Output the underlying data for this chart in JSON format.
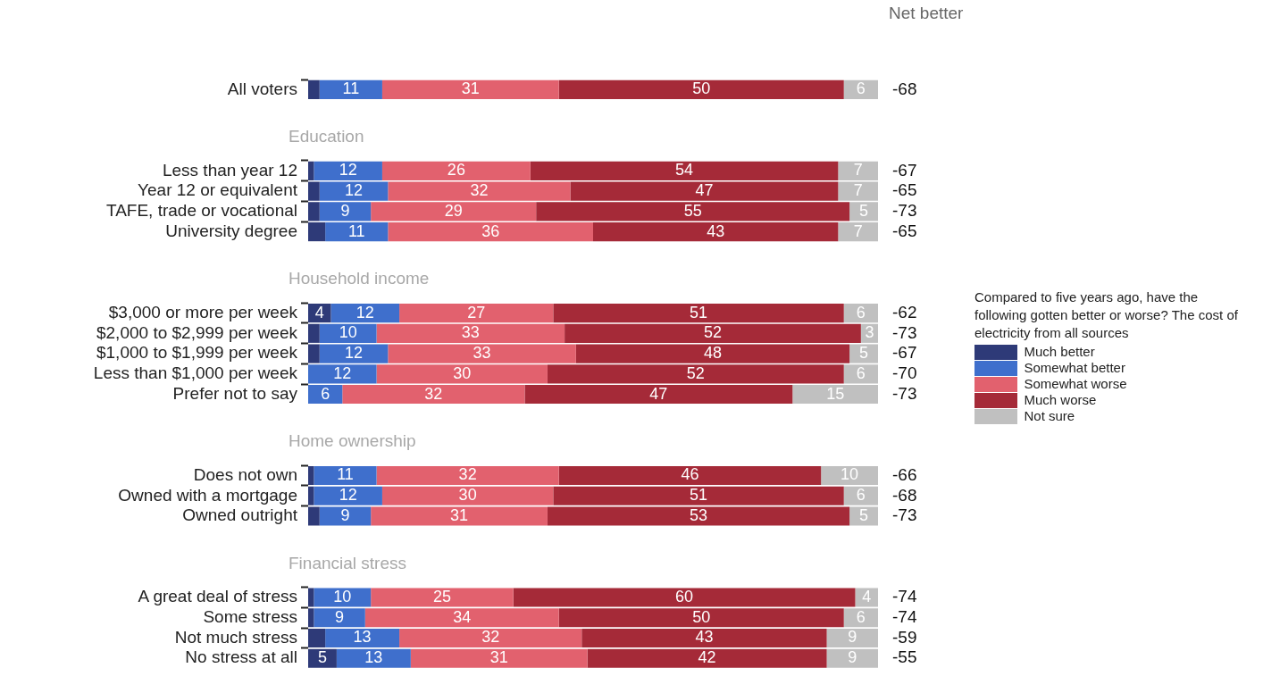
{
  "chart_data": {
    "type": "bar",
    "orientation": "horizontal",
    "stacked": true,
    "legend_title": "Compared to five years ago, have the following gotten better or worse? The cost of electricity from all sources",
    "legend": "right",
    "tick_labels": "y",
    "xlim": [
      0,
      100
    ],
    "categories": [
      "All voters",
      null,
      null,
      null,
      "Less than year 12",
      "Year 12 or equivalent",
      "TAFE, trade or vocational",
      "University degree",
      null,
      null,
      null,
      "$3,000 or more per week",
      "$2,000 to $2,999 per week",
      "$1,000 to $1,999 per week",
      "Less than $1,000 per week",
      "Prefer not to say",
      null,
      null,
      null,
      "Does not own",
      "Owned with a mortgage",
      "Owned outright",
      null,
      null,
      null,
      "A great deal of stress",
      "Some stress",
      "Not much stress",
      "No stress at all"
    ],
    "series": [
      {
        "name": "Much better",
        "color": "#2e3a78",
        "values": [
          2,
          null,
          null,
          null,
          1,
          2,
          2,
          3,
          null,
          null,
          null,
          4,
          2,
          2,
          0,
          0,
          null,
          null,
          null,
          1,
          1,
          2,
          null,
          null,
          null,
          1,
          1,
          3,
          5
        ],
        "value_labels": [
          null,
          null,
          null,
          null,
          null,
          null,
          null,
          null,
          null,
          null,
          null,
          "4",
          null,
          null,
          null,
          null,
          null,
          null,
          null,
          null,
          null,
          null,
          null,
          null,
          null,
          null,
          null,
          null,
          "5"
        ]
      },
      {
        "name": "Somewhat better",
        "color": "#3f6fcc",
        "values": [
          11,
          null,
          null,
          null,
          12,
          12,
          9,
          11,
          null,
          null,
          null,
          12,
          10,
          12,
          12,
          6,
          null,
          null,
          null,
          11,
          12,
          9,
          null,
          null,
          null,
          10,
          9,
          13,
          13
        ],
        "value_labels": [
          "11",
          null,
          null,
          null,
          "12",
          "12",
          "9",
          "11",
          null,
          null,
          null,
          "12",
          "10",
          "12",
          "12",
          "6",
          null,
          null,
          null,
          "11",
          "12",
          "9",
          null,
          null,
          null,
          "10",
          "9",
          "13",
          "13"
        ]
      },
      {
        "name": "Somewhat worse",
        "color": "#e2616e",
        "values": [
          31,
          null,
          null,
          null,
          26,
          32,
          29,
          36,
          null,
          null,
          null,
          27,
          33,
          33,
          30,
          32,
          null,
          null,
          null,
          32,
          30,
          31,
          null,
          null,
          null,
          25,
          34,
          32,
          31
        ],
        "value_labels": [
          "31",
          null,
          null,
          null,
          "26",
          "32",
          "29",
          "36",
          null,
          null,
          null,
          "27",
          "33",
          "33",
          "30",
          "32",
          null,
          null,
          null,
          "32",
          "30",
          "31",
          null,
          null,
          null,
          "25",
          "34",
          "32",
          "31"
        ]
      },
      {
        "name": "Much worse",
        "color": "#a52a38",
        "values": [
          50,
          null,
          null,
          null,
          54,
          47,
          55,
          43,
          null,
          null,
          null,
          51,
          52,
          48,
          52,
          47,
          null,
          null,
          null,
          46,
          51,
          53,
          null,
          null,
          null,
          60,
          50,
          43,
          42
        ],
        "value_labels": [
          "50",
          null,
          null,
          null,
          "54",
          "47",
          "55",
          "43",
          null,
          null,
          null,
          "51",
          "52",
          "48",
          "52",
          "47",
          null,
          null,
          null,
          "46",
          "51",
          "53",
          null,
          null,
          null,
          "60",
          "50",
          "43",
          "42"
        ]
      },
      {
        "name": "Not sure",
        "color": "#c0c0c0",
        "values": [
          6,
          null,
          null,
          null,
          7,
          7,
          5,
          7,
          null,
          null,
          null,
          6,
          3,
          5,
          6,
          15,
          null,
          null,
          null,
          10,
          6,
          5,
          null,
          null,
          null,
          4,
          6,
          9,
          9
        ],
        "value_labels": [
          "6",
          null,
          null,
          null,
          "7",
          "7",
          "5",
          "7",
          null,
          null,
          null,
          "6",
          "3",
          "5",
          "6",
          "15",
          null,
          null,
          null,
          "10",
          "6",
          "5",
          null,
          null,
          null,
          "4",
          "6",
          "9",
          "9"
        ]
      }
    ],
    "annotations": [
      "Education",
      "Household income",
      "Home ownership",
      "Financial stress",
      "Net better",
      "-68",
      "-67",
      "-65",
      "-73",
      "-65",
      "-62",
      "-73",
      "-67",
      "-70",
      "-73",
      "-66",
      "-68",
      "-73",
      "-74",
      "-74",
      "-59",
      "-55"
    ]
  }
}
